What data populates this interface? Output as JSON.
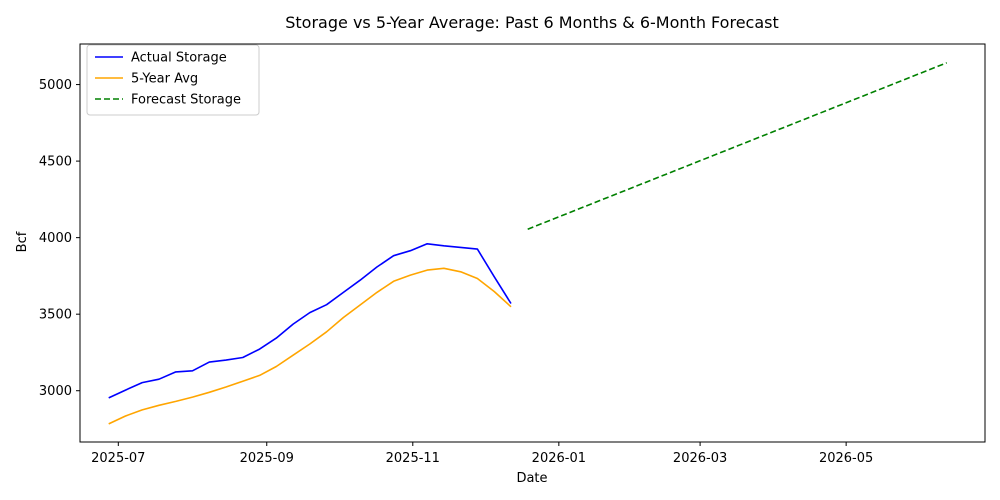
{
  "chart_data": {
    "type": "line",
    "title": "Storage vs 5-Year Average: Past 6 Months & 6-Month Forecast",
    "xlabel": "Date",
    "ylabel": "Bcf",
    "xlim": [
      "2025-06-15",
      "2026-06-28"
    ],
    "ylim": [
      2665,
      5265
    ],
    "x_ticks": [
      "2025-07-01",
      "2025-09-01",
      "2025-11-01",
      "2026-01-01",
      "2026-03-01",
      "2026-05-01"
    ],
    "x_tick_labels": [
      "2025-07",
      "2025-09",
      "2025-11",
      "2026-01",
      "2026-03",
      "2026-05"
    ],
    "y_ticks": [
      3000,
      3500,
      4000,
      4500,
      5000
    ],
    "y_tick_labels": [
      "3000",
      "3500",
      "4000",
      "4500",
      "5000"
    ],
    "grid": false,
    "legend_position": "top-left",
    "series": [
      {
        "name": "Actual Storage",
        "color": "#0000ff",
        "style": "solid",
        "x": [
          "2025-06-27",
          "2025-07-04",
          "2025-07-11",
          "2025-07-18",
          "2025-07-25",
          "2025-08-01",
          "2025-08-08",
          "2025-08-15",
          "2025-08-22",
          "2025-08-29",
          "2025-09-05",
          "2025-09-12",
          "2025-09-19",
          "2025-09-26",
          "2025-10-03",
          "2025-10-10",
          "2025-10-17",
          "2025-10-24",
          "2025-10-31",
          "2025-11-07",
          "2025-11-14",
          "2025-11-21",
          "2025-11-28",
          "2025-12-05",
          "2025-12-12"
        ],
        "y": [
          2953,
          3004,
          3053,
          3075,
          3123,
          3130,
          3187,
          3200,
          3217,
          3272,
          3344,
          3435,
          3510,
          3562,
          3642,
          3722,
          3808,
          3882,
          3915,
          3960,
          3947,
          3936,
          3925,
          3745,
          3570
        ]
      },
      {
        "name": "5-Year Avg",
        "color": "#ffa500",
        "style": "solid",
        "x": [
          "2025-06-27",
          "2025-07-04",
          "2025-07-11",
          "2025-07-18",
          "2025-07-25",
          "2025-08-01",
          "2025-08-08",
          "2025-08-15",
          "2025-08-22",
          "2025-08-29",
          "2025-09-05",
          "2025-09-12",
          "2025-09-19",
          "2025-09-26",
          "2025-10-03",
          "2025-10-10",
          "2025-10-17",
          "2025-10-24",
          "2025-10-31",
          "2025-11-07",
          "2025-11-14",
          "2025-11-21",
          "2025-11-28",
          "2025-12-05",
          "2025-12-12"
        ],
        "y": [
          2783,
          2835,
          2875,
          2905,
          2930,
          2958,
          2990,
          3024,
          3062,
          3100,
          3158,
          3232,
          3305,
          3385,
          3478,
          3560,
          3642,
          3715,
          3755,
          3788,
          3800,
          3777,
          3733,
          3648,
          3548
        ]
      },
      {
        "name": "Forecast Storage",
        "color": "#008000",
        "style": "dashed",
        "x": [
          "2025-12-19",
          "2026-06-12"
        ],
        "y": [
          4055,
          5142
        ]
      }
    ]
  }
}
